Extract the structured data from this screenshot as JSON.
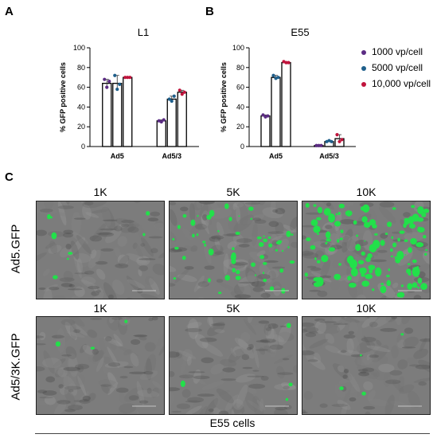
{
  "panels": {
    "a_letter": "A",
    "b_letter": "B",
    "c_letter": "C"
  },
  "legend": [
    {
      "label": "1000 vp/cell",
      "color": "#5b2c83"
    },
    {
      "label": "5000 vp/cell",
      "color": "#1f5f8b"
    },
    {
      "label": "10,000 vp/cell",
      "color": "#c0143c"
    }
  ],
  "chart_data": [
    {
      "type": "bar",
      "title": "L1",
      "ylabel": "% GFP positive cells",
      "ylim": [
        0,
        100
      ],
      "yticks": [
        0,
        20,
        40,
        60,
        80,
        100
      ],
      "categories": [
        "Ad5",
        "Ad5/3"
      ],
      "series": [
        {
          "name": "1000 vp/cell",
          "values": [
            64,
            26
          ],
          "points": [
            [
              68,
              60,
              66
            ],
            [
              26,
              25,
              27
            ]
          ]
        },
        {
          "name": "5000 vp/cell",
          "values": [
            64,
            48
          ],
          "points": [
            [
              72,
              58,
              63
            ],
            [
              48,
              46,
              51
            ]
          ]
        },
        {
          "name": "10,000 vp/cell",
          "values": [
            70,
            55
          ],
          "points": [
            [
              70,
              70,
              70
            ],
            [
              57,
              53,
              55
            ]
          ]
        }
      ]
    },
    {
      "type": "bar",
      "title": "E55",
      "ylabel": "% GFP positive cells",
      "ylim": [
        0,
        100
      ],
      "yticks": [
        0,
        20,
        40,
        60,
        80,
        100
      ],
      "categories": [
        "Ad5",
        "Ad5/3"
      ],
      "series": [
        {
          "name": "1000 vp/cell",
          "values": [
            31,
            1
          ],
          "points": [
            [
              32,
              30,
              31
            ],
            [
              1,
              1,
              1
            ]
          ]
        },
        {
          "name": "5000 vp/cell",
          "values": [
            70,
            5
          ],
          "points": [
            [
              72,
              69,
              70
            ],
            [
              5,
              6,
              5
            ]
          ]
        },
        {
          "name": "10,000 vp/cell",
          "values": [
            85,
            8
          ],
          "points": [
            [
              86,
              85,
              85
            ],
            [
              12,
              5,
              7
            ]
          ]
        }
      ]
    }
  ],
  "micrographs": {
    "col_labels": [
      "1K",
      "5K",
      "10K"
    ],
    "row_labels": [
      "Ad5.GFP",
      "Ad5/3K.GFP"
    ],
    "gfp_density": [
      [
        0.05,
        0.45,
        1.0
      ],
      [
        0.01,
        0.02,
        0.02
      ]
    ],
    "caption": "E55 cells"
  }
}
